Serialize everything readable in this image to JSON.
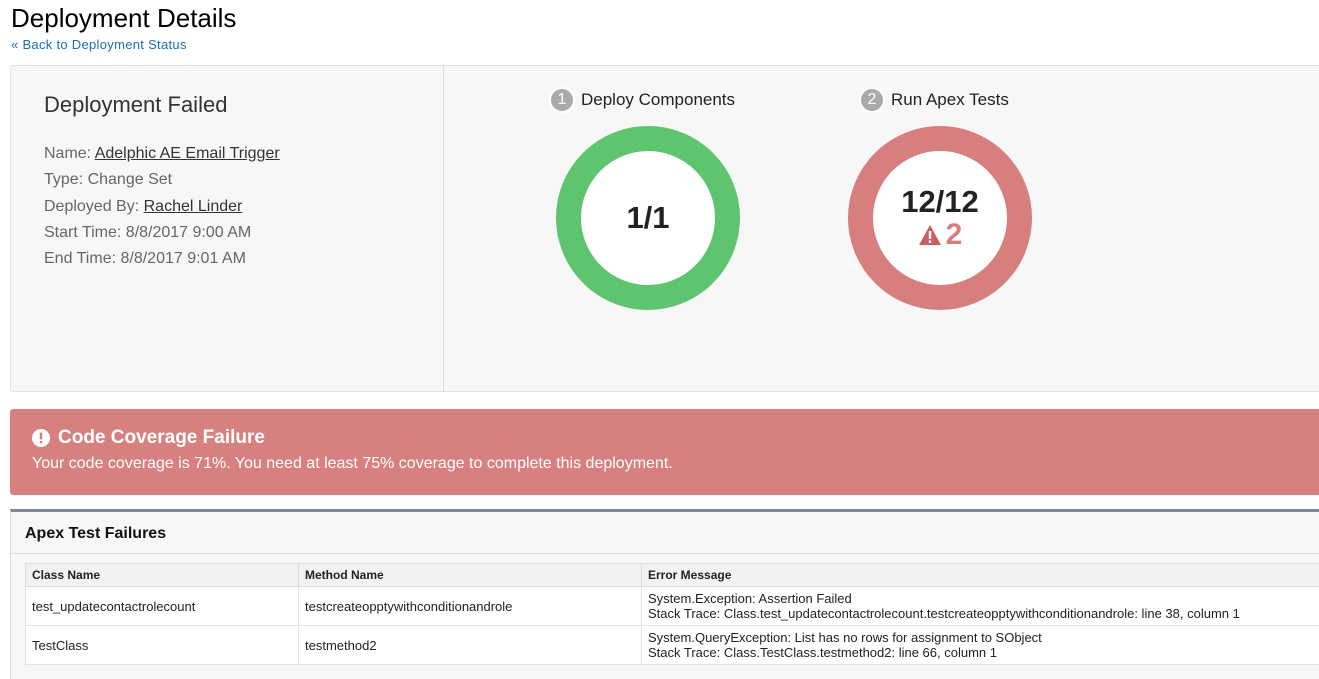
{
  "page": {
    "title": "Deployment Details",
    "back_link": "« Back to Deployment Status"
  },
  "summary": {
    "status": "Deployment Failed",
    "name_label": "Name:",
    "name": "Adelphic AE Email Trigger",
    "type": "Type: Change Set",
    "deployed_by_label": "Deployed By:",
    "deployed_by": "Rachel Linder",
    "start": "Start Time: 8/8/2017 9:00 AM",
    "end": "End Time: 8/8/2017 9:01 AM"
  },
  "steps": [
    {
      "number": "1",
      "label": "Deploy Components",
      "value": "1/1",
      "color": "#5fc46f"
    },
    {
      "number": "2",
      "label": "Run Apex Tests",
      "value": "12/12",
      "warnings": "2",
      "color": "#d77f7f"
    }
  ],
  "banner": {
    "title": "Code Coverage Failure",
    "message": "Your code coverage is 71%. You need at least 75% coverage to complete this deployment.",
    "color": "#d78080"
  },
  "failures": {
    "title": "Apex Test Failures",
    "columns": [
      "Class Name",
      "Method Name",
      "Error Message"
    ],
    "rows": [
      {
        "class": "test_updatecontactrolecount",
        "method": "testcreateopptywithconditionandrole",
        "error": "System.Exception: Assertion Failed",
        "trace": "Stack Trace: Class.test_updatecontactrolecount.testcreateopptywithconditionandrole: line 38, column 1"
      },
      {
        "class": "TestClass",
        "method": "testmethod2",
        "error": "System.QueryException: List has no rows for assignment to SObject",
        "trace": "Stack Trace: Class.TestClass.testmethod2: line 66, column 1"
      }
    ]
  }
}
